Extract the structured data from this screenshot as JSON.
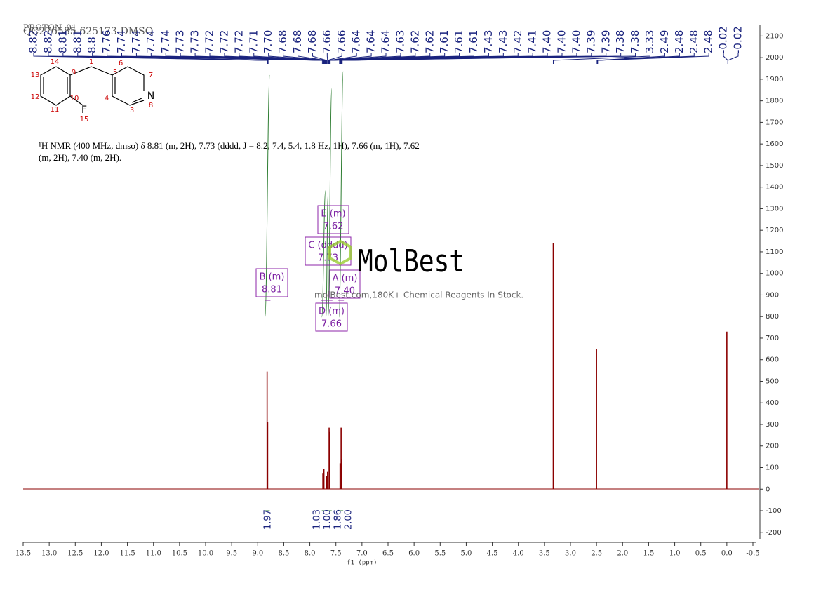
{
  "chart_data": {
    "type": "nmr",
    "title": "PROTON_01",
    "sample": "QC276585-625173-DMSO",
    "x_label": "f1 (ppm)",
    "xlim": [
      13.5,
      -0.5
    ],
    "xticks": [
      13.5,
      {
        "value": 13,
        "label": "13.0"
      },
      12.5,
      {
        "value": 12,
        "label": "12.0"
      },
      11.5,
      {
        "value": 11,
        "label": "11.0"
      },
      10.5,
      {
        "value": 10,
        "label": "10.0"
      },
      9.5,
      {
        "value": 9,
        "label": "9.0"
      },
      8.5,
      {
        "value": 8,
        "label": "8.0"
      },
      7.5,
      {
        "value": 7,
        "label": "7.0"
      },
      6.5,
      {
        "value": 6,
        "label": "6.0"
      },
      5.5,
      {
        "value": 5,
        "label": "5.0"
      },
      4.5,
      {
        "value": 4,
        "label": "4.0"
      },
      3.5,
      {
        "value": 3,
        "label": "3.0"
      },
      2.5,
      {
        "value": 2,
        "label": "2.0"
      },
      1.5,
      {
        "value": 1,
        "label": "1.0"
      },
      0.5,
      {
        "value": 0,
        "label": "0.0"
      },
      -0.5
    ],
    "ylim": [
      -230,
      2150
    ],
    "yticks": [
      -200,
      -100,
      0,
      100,
      200,
      300,
      400,
      500,
      600,
      700,
      800,
      900,
      1000,
      1100,
      1200,
      1300,
      1400,
      1500,
      1600,
      1700,
      1800,
      1900,
      2000,
      2100
    ],
    "peak_labels": [
      8.82,
      8.82,
      8.81,
      8.81,
      8.8,
      7.76,
      7.74,
      7.74,
      7.74,
      7.74,
      7.73,
      7.73,
      7.72,
      7.72,
      7.72,
      7.71,
      {
        "value": 7.7,
        "label": "7.70"
      },
      7.68,
      7.68,
      7.68,
      7.66,
      7.66,
      7.64,
      7.64,
      7.64,
      7.63,
      7.62,
      7.62,
      7.61,
      7.61,
      7.61,
      7.43,
      7.43,
      7.42,
      7.41,
      {
        "value": 7.4,
        "label": "7.40"
      },
      {
        "value": 7.4,
        "label": "7.40"
      },
      {
        "value": 7.4,
        "label": "7.40"
      },
      7.39,
      7.39,
      7.38,
      7.38,
      3.33,
      2.49,
      2.48,
      2.48,
      2.48,
      -0.02,
      -0.02
    ],
    "signals": {
      "x": [
        8.82,
        8.81,
        7.75,
        7.73,
        7.68,
        7.66,
        7.63,
        7.62,
        7.42,
        7.4,
        7.39,
        3.33,
        2.5,
        0.0
      ],
      "values": [
        545,
        310,
        75,
        95,
        60,
        80,
        285,
        265,
        120,
        285,
        140,
        1140,
        650,
        730
      ]
    },
    "color": "#8b0000",
    "description": [
      "¹H NMR (400 MHz, dmso) δ 8.81 (m, 2H), 7.73 (dddd, J = 8.2, 7.4, 5.4, 1.8 Hz, 1H), 7.66 (m, 1H), 7.62",
      "(m, 2H), 7.40 (m, 2H)."
    ],
    "multiplets": [
      {
        "name": "E (m)",
        "shift": 7.62
      },
      {
        "name": "C (dddd)",
        "shift": 7.73
      },
      {
        "name": "A (m)",
        "shift": {
          "value": 7.4,
          "label": "7.40"
        }
      },
      {
        "name": "B (m)",
        "shift": 8.81
      },
      {
        "name": "D (m)",
        "shift": 7.66
      }
    ],
    "integrals": [
      {
        "from": 8.86,
        "to": 8.77,
        "value": 1.97
      },
      {
        "from": 7.77,
        "to": 7.7,
        "value": 1.03
      },
      {
        "from": 7.69,
        "to": 7.65,
        "value": {
          "value": 1.0,
          "label": "1.00"
        }
      },
      {
        "from": 7.65,
        "to": 7.58,
        "value": 1.86
      },
      {
        "from": 7.44,
        "to": 7.36,
        "value": {
          "value": 2.0,
          "label": "2.00"
        }
      }
    ],
    "structure": {
      "labels": [
        "14",
        "1",
        "6",
        "7",
        "13",
        "9",
        "5",
        "12",
        "10",
        "4",
        "N",
        "8",
        "11",
        "F",
        "3",
        "15"
      ]
    },
    "watermark": {
      "brand": "MolBest",
      "tagline": "molBest.com,180K+ Chemical Reagents In Stock."
    }
  }
}
